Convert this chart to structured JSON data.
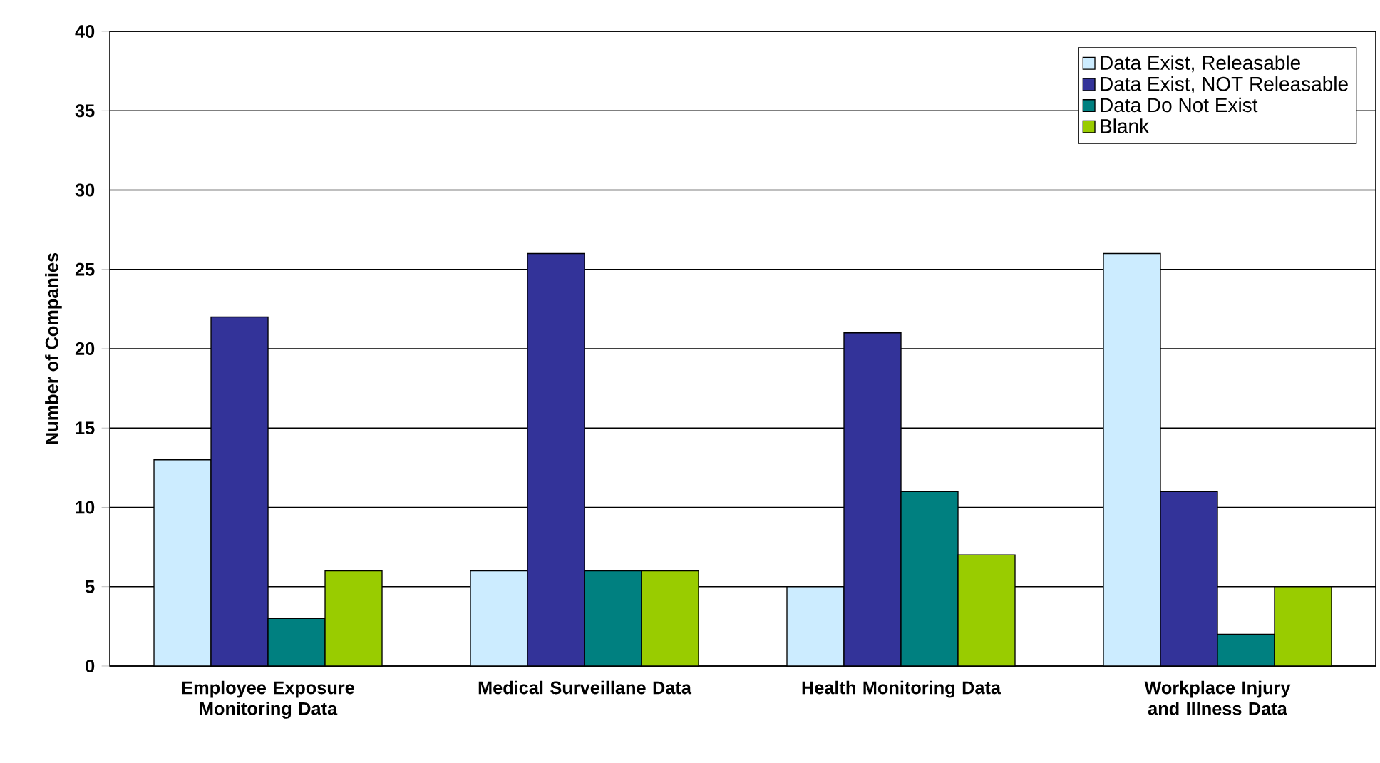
{
  "chart_data": {
    "type": "bar",
    "ylabel": "Number of Companies",
    "categories": [
      "Employee Exposure Monitoring Data",
      "Medical Surveillane Data",
      "Health Monitoring Data",
      "Workplace Injury and Illness Data"
    ],
    "series": [
      {
        "name": "Data Exist, Releasable",
        "color": "#ccecff",
        "values": [
          13,
          6,
          5,
          26
        ]
      },
      {
        "name": "Data Exist, NOT Releasable",
        "color": "#333399",
        "values": [
          22,
          26,
          21,
          11
        ]
      },
      {
        "name": "Data Do Not Exist",
        "color": "#008080",
        "values": [
          3,
          6,
          11,
          2
        ]
      },
      {
        "name": "Blank",
        "color": "#99cc00",
        "values": [
          6,
          6,
          7,
          5
        ]
      }
    ],
    "ylim": [
      0,
      40
    ],
    "yticks": [
      0,
      5,
      10,
      15,
      20,
      25,
      30,
      35,
      40
    ],
    "grid": "y",
    "legend": "top right"
  }
}
